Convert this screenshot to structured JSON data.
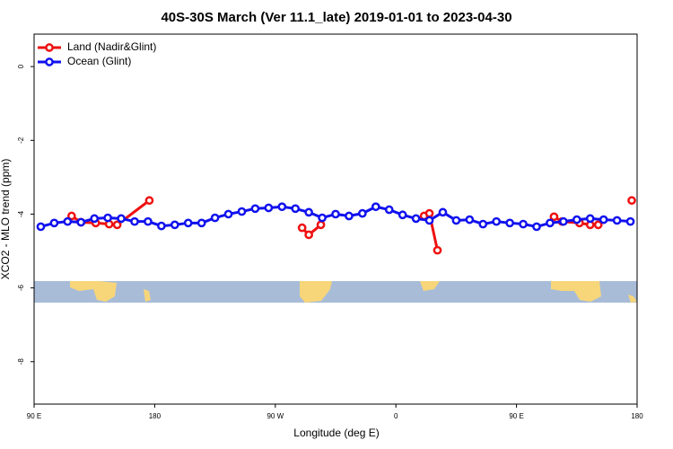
{
  "chart_data": {
    "type": "line",
    "title": "40S-30S March (Ver 11.1_late)   2019-01-01 to 2023-04-30",
    "x_label": "Longitude (deg E)",
    "y_label": "XCO2 - MLO trend (ppm)",
    "xlim": [
      90,
      540
    ],
    "xticks": [
      {
        "value": 90,
        "label": "90 E"
      },
      {
        "value": 180,
        "label": "180"
      },
      {
        "value": 270,
        "label": "90 W"
      },
      {
        "value": 360,
        "label": "0"
      },
      {
        "value": 450,
        "label": "90 E"
      },
      {
        "value": 540,
        "label": "180"
      }
    ],
    "ylim": [
      -9.15,
      0.88
    ],
    "yticks": [
      0,
      -2,
      -4,
      -6,
      -8
    ],
    "legend": "top-left",
    "series": [
      {
        "name": "Land (Nadir&Glint)",
        "color": "#ee1111",
        "x": [
          118,
          125,
          136,
          146,
          152,
          176,
          230,
          290,
          295,
          304,
          340,
          381,
          385,
          391,
          430,
          478,
          484,
          497,
          505,
          511,
          520,
          536
        ],
        "values": [
          -4.05,
          -4.22,
          -4.24,
          -4.27,
          -4.29,
          -3.63,
          null,
          -4.37,
          -4.56,
          -4.29,
          null,
          -4.05,
          -3.98,
          -4.98,
          null,
          -4.07,
          -4.2,
          -4.24,
          -4.29,
          -4.29,
          null,
          -3.63
        ]
      },
      {
        "name": "Ocean (Glint)",
        "color": "#1111ee",
        "x": [
          95,
          105,
          115,
          125,
          135,
          145,
          155,
          165,
          175,
          185,
          195,
          205,
          215,
          225,
          235,
          245,
          255,
          265,
          275,
          285,
          295,
          305,
          315,
          325,
          335,
          345,
          355,
          365,
          375,
          385,
          395,
          405,
          415,
          425,
          435,
          445,
          455,
          465,
          475,
          485,
          495,
          505,
          515,
          525,
          535
        ],
        "values": [
          -4.34,
          -4.24,
          -4.2,
          -4.22,
          -4.12,
          -4.1,
          -4.12,
          -4.2,
          -4.2,
          -4.32,
          -4.29,
          -4.24,
          -4.24,
          -4.1,
          -4.0,
          -3.93,
          -3.85,
          -3.83,
          -3.8,
          -3.85,
          -3.95,
          -4.1,
          -4.0,
          -4.05,
          -3.98,
          -3.8,
          -3.88,
          -4.02,
          -4.12,
          -4.17,
          -3.95,
          -4.17,
          -4.15,
          -4.27,
          -4.2,
          -4.24,
          -4.27,
          -4.34,
          -4.24,
          -4.2,
          -4.15,
          -4.12,
          -4.15,
          -4.17,
          -4.2
        ]
      }
    ]
  }
}
